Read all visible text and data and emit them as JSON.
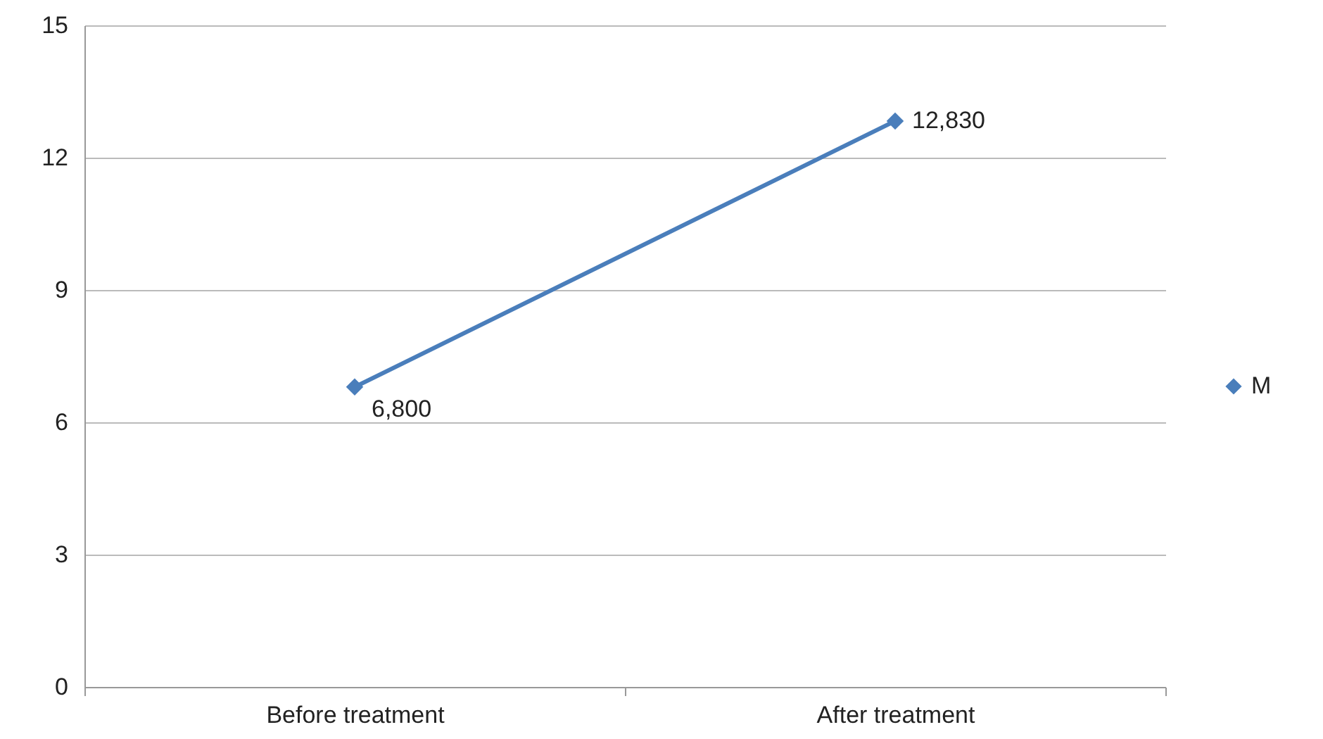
{
  "chart_data": {
    "type": "line",
    "categories": [
      "Before treatment",
      "After treatment"
    ],
    "series": [
      {
        "name": "M",
        "color": "#4a7ebb",
        "values": [
          6.8,
          12.83
        ]
      }
    ],
    "annotations": [
      {
        "text": "6,800",
        "x": "Before treatment",
        "y": 6.8
      },
      {
        "text": "12,830",
        "x": "After treatment",
        "y": 12.83
      }
    ],
    "ylim": [
      0,
      15
    ],
    "yticks": [
      0,
      3,
      6,
      9,
      12,
      15
    ],
    "grid": "y",
    "legend": "right",
    "marker": "diamond",
    "line_style": "solid"
  }
}
